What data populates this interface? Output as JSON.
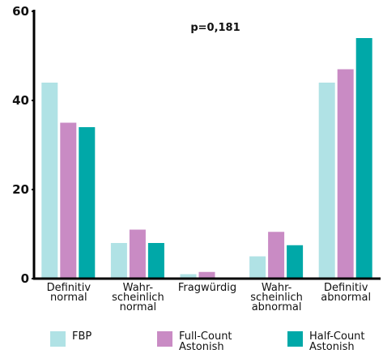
{
  "chart_data": {
    "type": "bar",
    "annotation": "p=0,181",
    "categories": [
      [
        "Definitiv",
        "normal"
      ],
      [
        "Wahr-",
        "scheinlich",
        "normal"
      ],
      [
        "Fragwürdig"
      ],
      [
        "Wahr-",
        "scheinlich",
        "abnormal"
      ],
      [
        "Definitiv",
        "abnormal"
      ]
    ],
    "series": [
      {
        "name": "FBP",
        "color": "#b0e2e5",
        "values": [
          44,
          8,
          1,
          5,
          44
        ]
      },
      {
        "name": "Full-Count Astonish",
        "color": "#c98bc4",
        "values": [
          35,
          11,
          1.5,
          10.5,
          47
        ]
      },
      {
        "name": "Half-Count Astonish",
        "color": "#00a8a8",
        "values": [
          34,
          8,
          0,
          7.5,
          54
        ]
      }
    ],
    "ylim": [
      0,
      60
    ],
    "yticks": [
      0,
      20,
      40,
      60
    ]
  }
}
